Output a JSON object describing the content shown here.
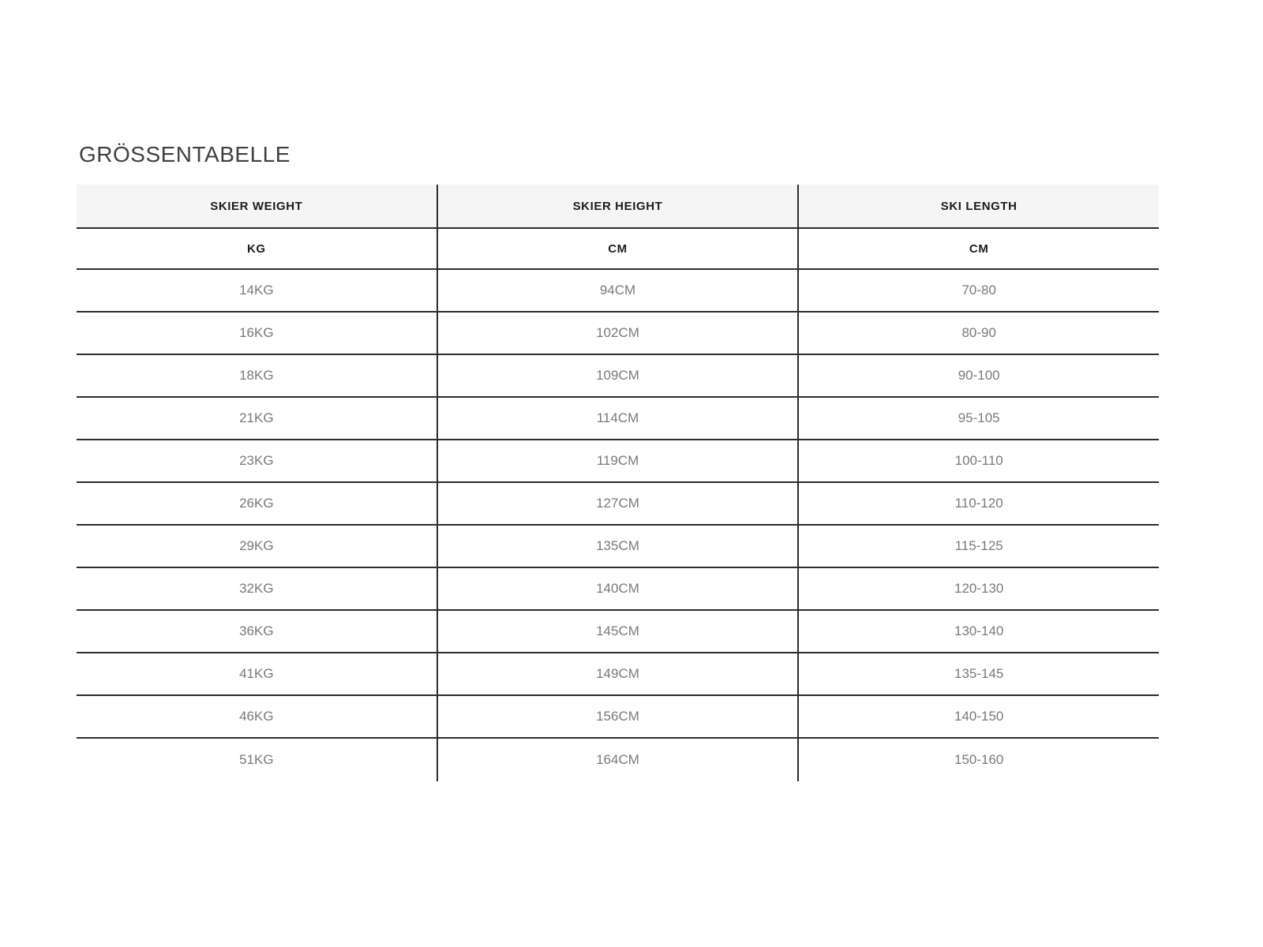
{
  "title": "GRÖSSENTABELLE",
  "colors": {
    "header_background": "#f5f5f5",
    "border": "#2d2d2d",
    "header_text": "#1c1c1c",
    "cell_text": "#7a7a7a",
    "title_text": "#3f3f3f",
    "page_background": "#ffffff"
  },
  "chart_data": {
    "type": "table",
    "title": "GRÖSSENTABELLE",
    "columns": [
      {
        "header": "SKIER WEIGHT",
        "unit": "KG"
      },
      {
        "header": "SKIER HEIGHT",
        "unit": "CM"
      },
      {
        "header": "SKI LENGTH",
        "unit": "CM"
      }
    ],
    "rows": [
      [
        "14KG",
        "94CM",
        "70-80"
      ],
      [
        "16KG",
        "102CM",
        "80-90"
      ],
      [
        "18KG",
        "109CM",
        "90-100"
      ],
      [
        "21KG",
        "114CM",
        "95-105"
      ],
      [
        "23KG",
        "119CM",
        "100-110"
      ],
      [
        "26KG",
        "127CM",
        "110-120"
      ],
      [
        "29KG",
        "135CM",
        "115-125"
      ],
      [
        "32KG",
        "140CM",
        "120-130"
      ],
      [
        "36KG",
        "145CM",
        "130-140"
      ],
      [
        "41KG",
        "149CM",
        "135-145"
      ],
      [
        "46KG",
        "156CM",
        "140-150"
      ],
      [
        "51KG",
        "164CM",
        "150-160"
      ]
    ]
  }
}
